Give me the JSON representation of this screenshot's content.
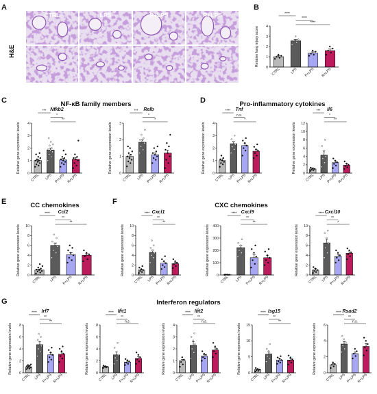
{
  "panel_labels": [
    "A",
    "B",
    "C",
    "D",
    "E",
    "F",
    "G"
  ],
  "histology": {
    "stain_label": "H&E",
    "columns": [
      "CTRL",
      "LPS",
      "P+LPS",
      "R+LPS"
    ],
    "colors": {
      "tissue": "#8e56b4",
      "background": "#e9def0"
    }
  },
  "sections": {
    "C": "NF-κB family members",
    "D": "Pro-inflammatory cytokines",
    "E": "CC chemokines",
    "F": "CXC chemokines",
    "G": "Interferon regulators"
  },
  "group_colors": [
    "#b9b9b9",
    "#5b5b5b",
    "#a6a6f2",
    "#bd1c5c"
  ],
  "chart_data": [
    {
      "id": "B",
      "type": "bar",
      "panel": "B",
      "title": "",
      "ylabel": "Relative lung injury score",
      "ylim": [
        0,
        4
      ],
      "yticks": [
        0,
        1,
        2,
        3,
        4
      ],
      "categories": [
        "CTRL",
        "LPS",
        "P+LPS",
        "R+LPS"
      ],
      "values": [
        1.0,
        2.55,
        1.35,
        1.6
      ],
      "errors": [
        0.1,
        0.15,
        0.12,
        0.15
      ],
      "points": [
        [
          0.8,
          0.9,
          1.0,
          1.1,
          1.2
        ],
        [
          2.2,
          2.4,
          2.6,
          2.7,
          3.0
        ],
        [
          1.1,
          1.2,
          1.3,
          1.5,
          1.6
        ],
        [
          1.2,
          1.4,
          1.6,
          1.8,
          2.0
        ]
      ],
      "significance": [
        {
          "from": 0,
          "to": 1,
          "label": "****"
        },
        {
          "from": 1,
          "to": 2,
          "label": "****"
        },
        {
          "from": 1,
          "to": 3,
          "label": "****"
        }
      ]
    },
    {
      "id": "Nfkb2",
      "type": "bar",
      "panel": "C",
      "title": "Nfkb2",
      "ylabel": "Relative gene expression levels",
      "ylim": [
        0,
        4
      ],
      "yticks": [
        0,
        1,
        2,
        3,
        4
      ],
      "categories": [
        "CTRL",
        "LPS",
        "P+LPS",
        "R+LPS"
      ],
      "values": [
        1.0,
        1.85,
        1.05,
        1.1
      ],
      "errors": [
        0.1,
        0.15,
        0.12,
        0.15
      ],
      "points": [
        [
          0.5,
          0.6,
          0.7,
          0.8,
          0.9,
          1.0,
          1.0,
          1.1,
          1.2,
          1.3,
          1.5,
          1.6
        ],
        [
          1.0,
          1.3,
          1.5,
          1.7,
          1.8,
          1.9,
          2.0,
          2.2,
          2.3,
          2.5,
          2.8
        ],
        [
          0.5,
          0.7,
          0.8,
          0.9,
          1.0,
          1.1,
          1.2,
          1.3,
          1.5,
          1.8
        ],
        [
          0.4,
          0.6,
          0.8,
          1.0,
          1.1,
          1.2,
          1.3,
          1.5,
          2.6
        ]
      ],
      "significance": [
        {
          "from": 0,
          "to": 1,
          "label": "***"
        },
        {
          "from": 1,
          "to": 2,
          "label": "*"
        },
        {
          "from": 1,
          "to": 3,
          "label": "**"
        }
      ]
    },
    {
      "id": "Relb",
      "type": "bar",
      "panel": "C",
      "title": "Relb",
      "ylabel": "Relative gene expression levels",
      "ylim": [
        0,
        3
      ],
      "yticks": [
        0,
        1,
        2,
        3
      ],
      "categories": [
        "CTRL",
        "LPS",
        "P+LPS",
        "R+LPS"
      ],
      "values": [
        1.0,
        1.85,
        1.1,
        1.2
      ],
      "errors": [
        0.1,
        0.15,
        0.1,
        0.18
      ],
      "points": [
        [
          0.4,
          0.6,
          0.7,
          0.8,
          0.9,
          1.0,
          1.1,
          1.2,
          1.3,
          1.5,
          1.6
        ],
        [
          1.2,
          1.4,
          1.6,
          1.8,
          1.9,
          2.0,
          2.1,
          2.3,
          2.6
        ],
        [
          0.6,
          0.8,
          0.9,
          1.0,
          1.1,
          1.2,
          1.3,
          1.5,
          1.6
        ],
        [
          0.3,
          0.6,
          0.8,
          1.0,
          1.2,
          1.4,
          1.6,
          1.8,
          2.3
        ]
      ],
      "significance": [
        {
          "from": 0,
          "to": 1,
          "label": "***"
        },
        {
          "from": 1,
          "to": 2,
          "label": "*"
        },
        {
          "from": 1,
          "to": 3,
          "label": "*"
        }
      ]
    },
    {
      "id": "Tnf",
      "type": "bar",
      "panel": "D",
      "title": "Tnf",
      "ylabel": "Relative gene expression levels",
      "ylim": [
        0,
        4
      ],
      "yticks": [
        0,
        1,
        2,
        3,
        4
      ],
      "categories": [
        "CTRL",
        "LPS",
        "P+LPS",
        "R+LPS"
      ],
      "values": [
        1.0,
        2.35,
        2.2,
        1.75
      ],
      "errors": [
        0.12,
        0.2,
        0.2,
        0.15
      ],
      "points": [
        [
          0.5,
          0.7,
          0.8,
          0.9,
          1.0,
          1.1,
          1.2,
          1.4
        ],
        [
          1.6,
          1.9,
          2.1,
          2.3,
          2.5,
          2.7,
          3.0
        ],
        [
          1.4,
          1.8,
          2.0,
          2.2,
          2.4,
          2.6,
          2.8
        ],
        [
          1.2,
          1.4,
          1.6,
          1.8,
          1.9,
          2.1,
          2.3
        ]
      ],
      "significance": [
        {
          "from": 0,
          "to": 1,
          "label": "****"
        },
        {
          "from": 1,
          "to": 2,
          "label": "n.s."
        },
        {
          "from": 1,
          "to": 3,
          "label": "*"
        }
      ]
    },
    {
      "id": "Il6",
      "type": "bar",
      "panel": "D",
      "title": "Il6",
      "ylabel": "Relative gene expression levels",
      "ylim": [
        0,
        12
      ],
      "yticks": [
        0,
        2,
        4,
        6,
        8,
        10,
        12
      ],
      "categories": [
        "CTRL",
        "LPS",
        "P+LPS",
        "R+LPS"
      ],
      "values": [
        1.0,
        4.3,
        2.5,
        1.9
      ],
      "errors": [
        0.2,
        1.0,
        0.4,
        0.3
      ],
      "points": [
        [
          0.5,
          0.7,
          0.8,
          1.0,
          1.1,
          1.3
        ],
        [
          1.5,
          2.5,
          3.5,
          4.0,
          5.0,
          6.5,
          8.0
        ],
        [
          1.2,
          1.8,
          2.2,
          2.6,
          3.0,
          3.5
        ],
        [
          1.0,
          1.4,
          1.7,
          2.0,
          2.3,
          2.8
        ]
      ],
      "significance": [
        {
          "from": 0,
          "to": 1,
          "label": "***"
        },
        {
          "from": 1,
          "to": 2,
          "label": "*"
        },
        {
          "from": 1,
          "to": 3,
          "label": "**"
        }
      ]
    },
    {
      "id": "Ccl2",
      "type": "bar",
      "panel": "E",
      "title": "Ccl2",
      "ylabel": "Relative gene expression levels",
      "ylim": [
        0,
        10
      ],
      "yticks": [
        0,
        2,
        4,
        6,
        8,
        10
      ],
      "categories": [
        "CTRL",
        "LPS",
        "P+LPS",
        "R+LPS"
      ],
      "values": [
        1.0,
        6.0,
        4.1,
        4.0
      ],
      "errors": [
        0.2,
        0.5,
        0.4,
        0.3
      ],
      "points": [
        [
          0.3,
          0.5,
          0.7,
          0.8,
          1.0,
          1.1,
          1.3,
          1.5,
          1.8,
          2.2
        ],
        [
          3.5,
          4.5,
          5.0,
          5.8,
          6.2,
          6.8,
          7.5,
          8.2
        ],
        [
          2.5,
          3.0,
          3.5,
          4.0,
          4.5,
          5.0,
          5.5,
          6.0
        ],
        [
          2.8,
          3.2,
          3.8,
          4.2,
          4.5,
          5.0
        ]
      ],
      "significance": [
        {
          "from": 0,
          "to": 1,
          "label": "****"
        },
        {
          "from": 1,
          "to": 2,
          "label": "**"
        },
        {
          "from": 1,
          "to": 3,
          "label": "**"
        }
      ]
    },
    {
      "id": "Cxcl1",
      "type": "bar",
      "panel": "F",
      "title": "Cxcl1",
      "ylabel": "Relative gene expression levels",
      "ylim": [
        0,
        10
      ],
      "yticks": [
        0,
        2,
        4,
        6,
        8,
        10
      ],
      "categories": [
        "CTRL",
        "LPS",
        "P+LPS",
        "R+LPS"
      ],
      "values": [
        1.0,
        4.6,
        2.4,
        2.3
      ],
      "errors": [
        0.2,
        0.5,
        0.4,
        0.3
      ],
      "points": [
        [
          0.4,
          0.6,
          0.8,
          1.0,
          1.2,
          1.5,
          1.8
        ],
        [
          2.5,
          3.5,
          4.0,
          4.5,
          5.0,
          5.5,
          6.0,
          7.0
        ],
        [
          1.2,
          1.6,
          2.0,
          2.4,
          2.8,
          3.2,
          3.8
        ],
        [
          1.4,
          1.8,
          2.2,
          2.5,
          2.8,
          3.2
        ]
      ],
      "significance": [
        {
          "from": 0,
          "to": 1,
          "label": "****"
        },
        {
          "from": 1,
          "to": 2,
          "label": "**"
        },
        {
          "from": 1,
          "to": 3,
          "label": "**"
        }
      ]
    },
    {
      "id": "Cxcl9",
      "type": "bar",
      "panel": "F",
      "title": "Cxcl9",
      "ylabel": "Relative gene expression levels",
      "ylim": [
        0,
        400
      ],
      "yticks": [
        0,
        100,
        200,
        300,
        400
      ],
      "categories": [
        "CTRL",
        "LPS",
        "P+LPS",
        "R+LPS"
      ],
      "values": [
        2,
        222,
        140,
        140
      ],
      "errors": [
        1,
        20,
        25,
        20
      ],
      "points": [
        [
          1,
          1,
          2,
          2,
          3,
          3
        ],
        [
          150,
          180,
          200,
          220,
          240,
          260,
          290
        ],
        [
          60,
          90,
          120,
          150,
          180,
          210,
          240
        ],
        [
          80,
          100,
          120,
          140,
          160,
          190,
          210
        ]
      ],
      "significance": [
        {
          "from": 0,
          "to": 1,
          "label": "****"
        },
        {
          "from": 1,
          "to": 2,
          "label": "**"
        },
        {
          "from": 1,
          "to": 3,
          "label": "**"
        }
      ]
    },
    {
      "id": "Cxcl10",
      "type": "bar",
      "panel": "F",
      "title": "Cxcl10",
      "ylabel": "Relative gene expression levels",
      "ylim": [
        0,
        10
      ],
      "yticks": [
        0,
        2,
        4,
        6,
        8,
        10
      ],
      "categories": [
        "CTRL",
        "LPS",
        "P+LPS",
        "R+LPS"
      ],
      "values": [
        1.0,
        6.5,
        3.8,
        4.4
      ],
      "errors": [
        0.3,
        0.8,
        0.4,
        0.3
      ],
      "points": [
        [
          0.4,
          0.6,
          0.8,
          1.0,
          1.3,
          1.6
        ],
        [
          3.5,
          4.5,
          5.5,
          6.5,
          7.5,
          8.5,
          9.0
        ],
        [
          2.5,
          3.0,
          3.5,
          4.0,
          4.5,
          5.0
        ],
        [
          3.2,
          3.8,
          4.2,
          4.6,
          5.0,
          5.4
        ]
      ],
      "significance": [
        {
          "from": 0,
          "to": 1,
          "label": "****"
        },
        {
          "from": 1,
          "to": 2,
          "label": "**"
        },
        {
          "from": 1,
          "to": 3,
          "label": "*"
        }
      ]
    },
    {
      "id": "Irf7",
      "type": "bar",
      "panel": "G",
      "title": "Irf7",
      "ylabel": "Relative gene expression levels",
      "ylim": [
        0,
        8
      ],
      "yticks": [
        0,
        2,
        4,
        6,
        8
      ],
      "categories": [
        "CTRL",
        "LPS",
        "P+LPS",
        "R+LPS"
      ],
      "values": [
        1.0,
        4.7,
        3.0,
        3.1
      ],
      "errors": [
        0.15,
        0.5,
        0.35,
        0.35
      ],
      "points": [
        [
          0.6,
          0.7,
          0.8,
          0.9,
          1.0,
          1.1,
          1.2,
          1.3,
          1.4
        ],
        [
          2.8,
          3.5,
          4.0,
          4.5,
          5.0,
          5.5,
          6.0,
          6.5
        ],
        [
          1.8,
          2.2,
          2.6,
          3.0,
          3.4,
          3.8,
          4.2
        ],
        [
          1.8,
          2.4,
          2.8,
          3.2,
          3.6,
          4.0,
          4.4
        ]
      ],
      "significance": [
        {
          "from": 0,
          "to": 1,
          "label": "****"
        },
        {
          "from": 1,
          "to": 2,
          "label": "**"
        },
        {
          "from": 1,
          "to": 3,
          "label": "**"
        }
      ]
    },
    {
      "id": "Ifit1",
      "type": "bar",
      "panel": "G",
      "title": "Ifit1",
      "ylabel": "Relative gene expression levels",
      "ylim": [
        0,
        8
      ],
      "yticks": [
        0,
        2,
        4,
        6,
        8
      ],
      "categories": [
        "CTRL",
        "LPS",
        "P+LPS",
        "R+LPS"
      ],
      "values": [
        1.0,
        3.0,
        1.8,
        2.4
      ],
      "errors": [
        0.1,
        0.5,
        0.15,
        0.3
      ],
      "points": [
        [
          0.8,
          0.9,
          1.0,
          1.0,
          1.1,
          1.2
        ],
        [
          1.5,
          2.0,
          2.5,
          3.0,
          3.5,
          4.2,
          5.0
        ],
        [
          1.3,
          1.5,
          1.7,
          1.9,
          2.1,
          2.3
        ],
        [
          1.5,
          1.9,
          2.2,
          2.6,
          3.0,
          3.4
        ]
      ],
      "significance": [
        {
          "from": 0,
          "to": 1,
          "label": "****"
        },
        {
          "from": 1,
          "to": 2,
          "label": "**"
        },
        {
          "from": 1,
          "to": 3,
          "label": "n.s."
        }
      ]
    },
    {
      "id": "Ifit2",
      "type": "bar",
      "panel": "G",
      "title": "Ifit2",
      "ylabel": "Relative gene expression levels",
      "ylim": [
        0,
        4
      ],
      "yticks": [
        0,
        1,
        2,
        3,
        4
      ],
      "categories": [
        "CTRL",
        "LPS",
        "P+LPS",
        "R+LPS"
      ],
      "values": [
        1.0,
        2.3,
        1.4,
        1.9
      ],
      "errors": [
        0.12,
        0.3,
        0.12,
        0.2
      ],
      "points": [
        [
          0.5,
          0.7,
          0.9,
          1.1,
          1.3
        ],
        [
          1.2,
          1.7,
          2.0,
          2.4,
          2.7,
          3.0,
          3.3
        ],
        [
          1.0,
          1.2,
          1.3,
          1.5,
          1.6,
          1.8
        ],
        [
          1.3,
          1.6,
          1.8,
          2.0,
          2.2,
          2.5
        ]
      ],
      "significance": [
        {
          "from": 0,
          "to": 1,
          "label": "****"
        },
        {
          "from": 1,
          "to": 2,
          "label": "**"
        },
        {
          "from": 1,
          "to": 3,
          "label": "n.s."
        }
      ]
    },
    {
      "id": "Isg15",
      "type": "bar",
      "panel": "G",
      "title": "Isg15",
      "ylabel": "Relative gene expression levels",
      "ylim": [
        0,
        15
      ],
      "yticks": [
        0,
        5,
        10,
        15
      ],
      "categories": [
        "CTRL",
        "LPS",
        "P+LPS",
        "R+LPS"
      ],
      "values": [
        1.0,
        5.8,
        4.0,
        4.0
      ],
      "errors": [
        0.2,
        0.7,
        0.4,
        0.4
      ],
      "points": [
        [
          0.4,
          0.6,
          0.8,
          1.0,
          1.2,
          1.5
        ],
        [
          3.5,
          4.5,
          5.2,
          6.0,
          6.8,
          7.5,
          9.0
        ],
        [
          2.8,
          3.2,
          3.6,
          4.0,
          4.4,
          4.8,
          5.2
        ],
        [
          2.6,
          3.2,
          3.8,
          4.2,
          4.8,
          5.4
        ]
      ],
      "significance": [
        {
          "from": 0,
          "to": 1,
          "label": "****"
        },
        {
          "from": 1,
          "to": 2,
          "label": "**"
        },
        {
          "from": 1,
          "to": 3,
          "label": "**"
        }
      ]
    },
    {
      "id": "Rsad2",
      "type": "bar",
      "panel": "G",
      "title": "Rsad2",
      "ylabel": "Relative gene expression levels",
      "ylim": [
        0,
        6
      ],
      "yticks": [
        0,
        2,
        4,
        6
      ],
      "categories": [
        "CTRL",
        "LPS",
        "P+LPS",
        "R+LPS"
      ],
      "values": [
        1.0,
        3.6,
        2.4,
        3.3
      ],
      "errors": [
        0.15,
        0.3,
        0.2,
        0.35
      ],
      "points": [
        [
          0.6,
          0.8,
          1.0,
          1.1,
          1.3
        ],
        [
          2.6,
          3.0,
          3.4,
          3.8,
          4.2,
          4.6
        ],
        [
          1.8,
          2.1,
          2.4,
          2.7,
          3.0
        ],
        [
          2.2,
          2.8,
          3.2,
          3.6,
          4.0,
          4.4
        ]
      ],
      "significance": [
        {
          "from": 0,
          "to": 1,
          "label": "****"
        },
        {
          "from": 1,
          "to": 2,
          "label": "**"
        },
        {
          "from": 1,
          "to": 3,
          "label": "n.s."
        }
      ]
    }
  ]
}
